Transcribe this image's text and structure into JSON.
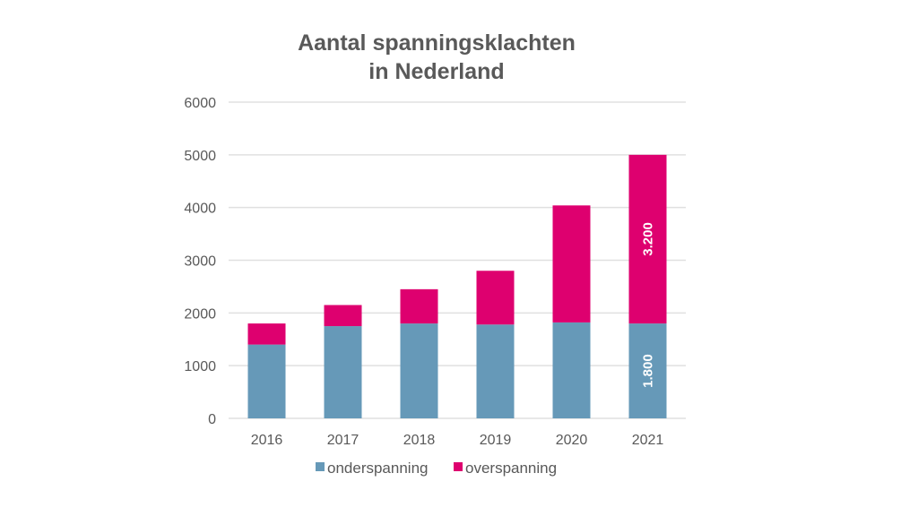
{
  "chart_data": {
    "type": "bar",
    "stacked": true,
    "title": [
      "Aantal spanningsklachten",
      "in Nederland"
    ],
    "xlabel": "",
    "ylabel": "",
    "categories": [
      "2016",
      "2017",
      "2018",
      "2019",
      "2020",
      "2021"
    ],
    "ylim": [
      0,
      6000
    ],
    "yticks": [
      0,
      1000,
      2000,
      3000,
      4000,
      5000,
      6000
    ],
    "grid": true,
    "legend_placement": "bottom",
    "series": [
      {
        "name": "onderspanning",
        "color": "#6699b8",
        "values": [
          1400,
          1750,
          1800,
          1780,
          1820,
          1800
        ]
      },
      {
        "name": "overspanning",
        "color": "#de006f",
        "values": [
          400,
          400,
          650,
          1020,
          2220,
          3200
        ]
      }
    ],
    "data_labels": [
      {
        "category": "2021",
        "series": "onderspanning",
        "text": "1.800"
      },
      {
        "category": "2021",
        "series": "overspanning",
        "text": "3.200"
      }
    ]
  }
}
